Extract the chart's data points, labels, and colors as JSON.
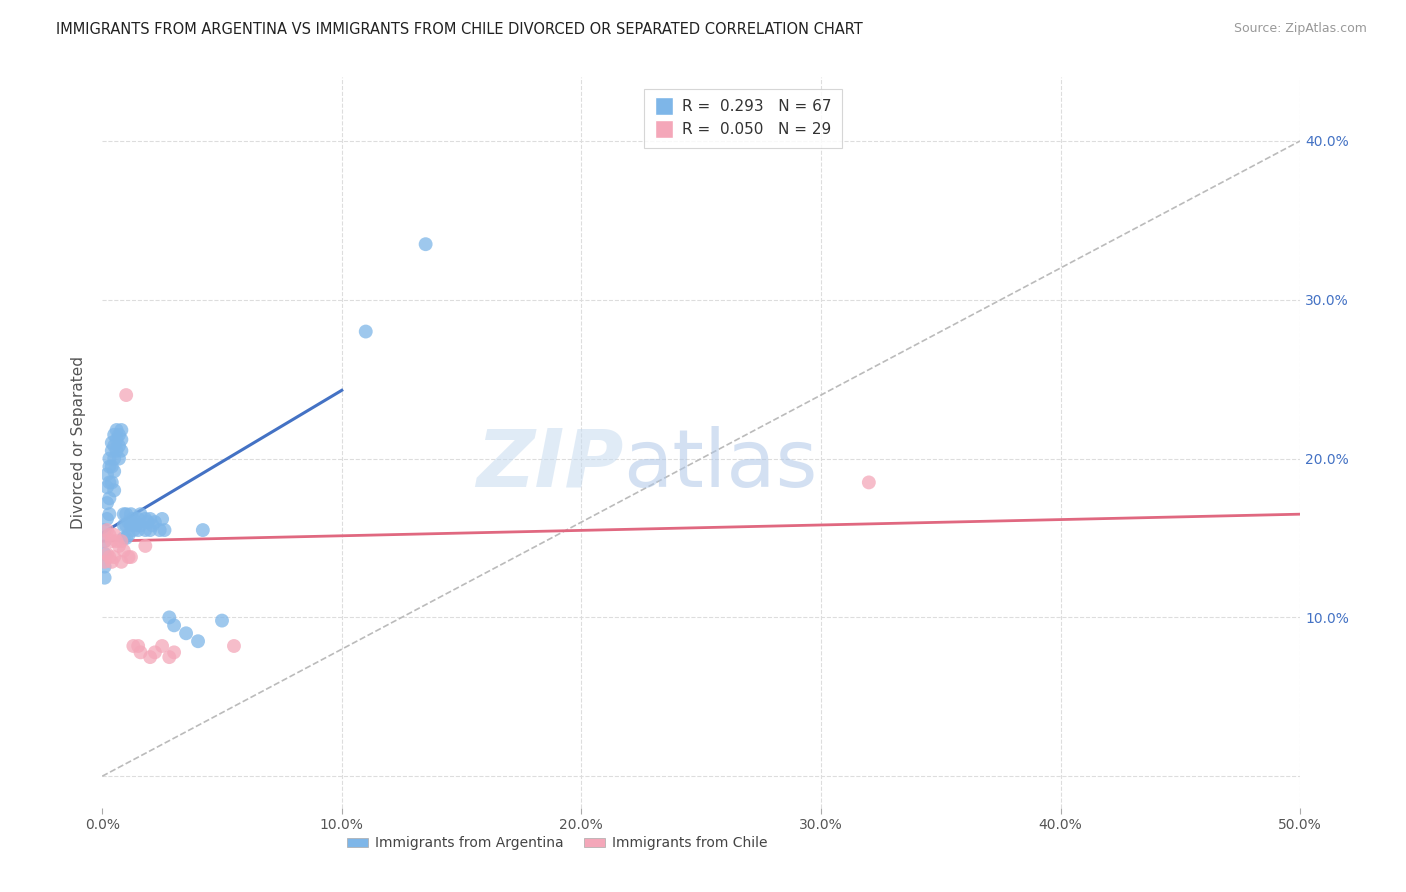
{
  "title": "IMMIGRANTS FROM ARGENTINA VS IMMIGRANTS FROM CHILE DIVORCED OR SEPARATED CORRELATION CHART",
  "source": "Source: ZipAtlas.com",
  "ylabel": "Divorced or Separated",
  "xlim": [
    0.0,
    0.5
  ],
  "ylim": [
    -0.02,
    0.44
  ],
  "xticks": [
    0.0,
    0.1,
    0.2,
    0.3,
    0.4,
    0.5
  ],
  "xtick_labels": [
    "0.0%",
    "10.0%",
    "20.0%",
    "30.0%",
    "40.0%",
    "50.0%"
  ],
  "yticks": [
    0.0,
    0.1,
    0.2,
    0.3,
    0.4
  ],
  "ytick_labels_right": [
    "10.0%",
    "20.0%",
    "30.0%",
    "40.0%"
  ],
  "yticks_right": [
    0.1,
    0.2,
    0.3,
    0.4
  ],
  "argentina_color": "#7EB6E8",
  "chile_color": "#F4A7B9",
  "argentina_line_color": "#4472C4",
  "chile_line_color": "#E06880",
  "argentina_R": 0.293,
  "argentina_N": 67,
  "chile_R": 0.05,
  "chile_N": 29,
  "legend_label_argentina": "Immigrants from Argentina",
  "legend_label_chile": "Immigrants from Chile",
  "grid_color": "#DDDDDD",
  "dashed_color": "#BBBBBB",
  "line_argentina_x0": 0.0,
  "line_argentina_y0": 0.153,
  "line_argentina_x1": 0.1,
  "line_argentina_y1": 0.243,
  "line_chile_x0": 0.0,
  "line_chile_y0": 0.148,
  "line_chile_x1": 0.5,
  "line_chile_y1": 0.165,
  "argentina_scatter_x": [
    0.001,
    0.001,
    0.001,
    0.001,
    0.001,
    0.002,
    0.002,
    0.002,
    0.002,
    0.003,
    0.003,
    0.003,
    0.003,
    0.003,
    0.004,
    0.004,
    0.004,
    0.004,
    0.005,
    0.005,
    0.005,
    0.005,
    0.005,
    0.006,
    0.006,
    0.006,
    0.007,
    0.007,
    0.007,
    0.008,
    0.008,
    0.008,
    0.009,
    0.009,
    0.009,
    0.01,
    0.01,
    0.01,
    0.011,
    0.011,
    0.012,
    0.012,
    0.013,
    0.013,
    0.014,
    0.015,
    0.015,
    0.016,
    0.016,
    0.018,
    0.018,
    0.019,
    0.02,
    0.02,
    0.021,
    0.022,
    0.024,
    0.025,
    0.026,
    0.028,
    0.03,
    0.035,
    0.04,
    0.042,
    0.05,
    0.11,
    0.135
  ],
  "argentina_scatter_y": [
    0.155,
    0.148,
    0.14,
    0.132,
    0.125,
    0.19,
    0.182,
    0.172,
    0.162,
    0.2,
    0.195,
    0.185,
    0.175,
    0.165,
    0.21,
    0.205,
    0.195,
    0.185,
    0.215,
    0.208,
    0.2,
    0.192,
    0.18,
    0.218,
    0.212,
    0.205,
    0.215,
    0.208,
    0.2,
    0.218,
    0.212,
    0.205,
    0.165,
    0.158,
    0.15,
    0.165,
    0.158,
    0.15,
    0.16,
    0.152,
    0.165,
    0.158,
    0.162,
    0.155,
    0.158,
    0.162,
    0.155,
    0.165,
    0.158,
    0.162,
    0.155,
    0.16,
    0.162,
    0.155,
    0.158,
    0.16,
    0.155,
    0.162,
    0.155,
    0.1,
    0.095,
    0.09,
    0.085,
    0.155,
    0.098,
    0.28,
    0.335
  ],
  "chile_scatter_x": [
    0.001,
    0.001,
    0.002,
    0.002,
    0.003,
    0.003,
    0.004,
    0.004,
    0.005,
    0.005,
    0.006,
    0.007,
    0.008,
    0.008,
    0.009,
    0.01,
    0.011,
    0.012,
    0.013,
    0.015,
    0.016,
    0.018,
    0.02,
    0.022,
    0.025,
    0.028,
    0.03,
    0.055,
    0.32
  ],
  "chile_scatter_y": [
    0.148,
    0.135,
    0.155,
    0.14,
    0.152,
    0.138,
    0.148,
    0.135,
    0.152,
    0.138,
    0.148,
    0.145,
    0.148,
    0.135,
    0.142,
    0.24,
    0.138,
    0.138,
    0.082,
    0.082,
    0.078,
    0.145,
    0.075,
    0.078,
    0.082,
    0.075,
    0.078,
    0.082,
    0.185
  ]
}
